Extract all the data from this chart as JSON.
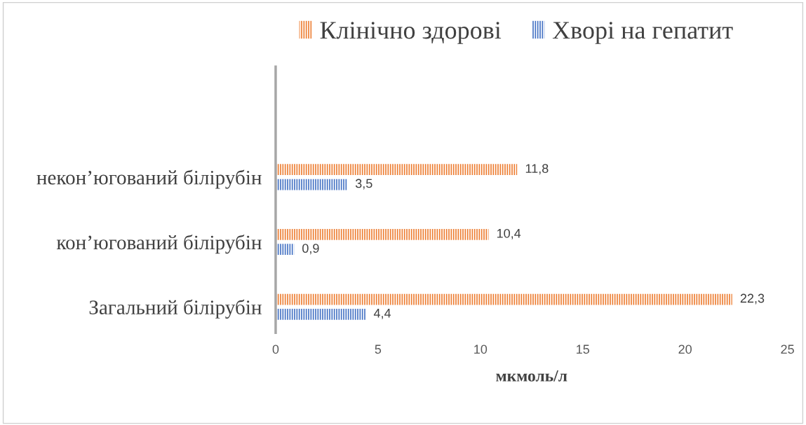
{
  "chart_data": {
    "type": "bar",
    "orientation": "horizontal",
    "xlabel": "мкмоль/л",
    "categories": [
      "некон’югований білірубін",
      "кон’югований білірубін",
      "Загальний білірубін"
    ],
    "series": [
      {
        "name": "Клінічно здорові",
        "color": "#ed7d31",
        "values": [
          11.8,
          10.4,
          22.3
        ],
        "value_labels": [
          "11,8",
          "10,4",
          "22,3"
        ]
      },
      {
        "name": "Хворі на гепатит",
        "color": "#4472c4",
        "values": [
          3.5,
          0.9,
          4.4
        ],
        "value_labels": [
          "3,5",
          "0,9",
          "4,4"
        ]
      }
    ],
    "xlim": [
      0,
      25
    ],
    "xticks": [
      0,
      5,
      10,
      15,
      20,
      25
    ],
    "grid": false,
    "legend": "top"
  }
}
